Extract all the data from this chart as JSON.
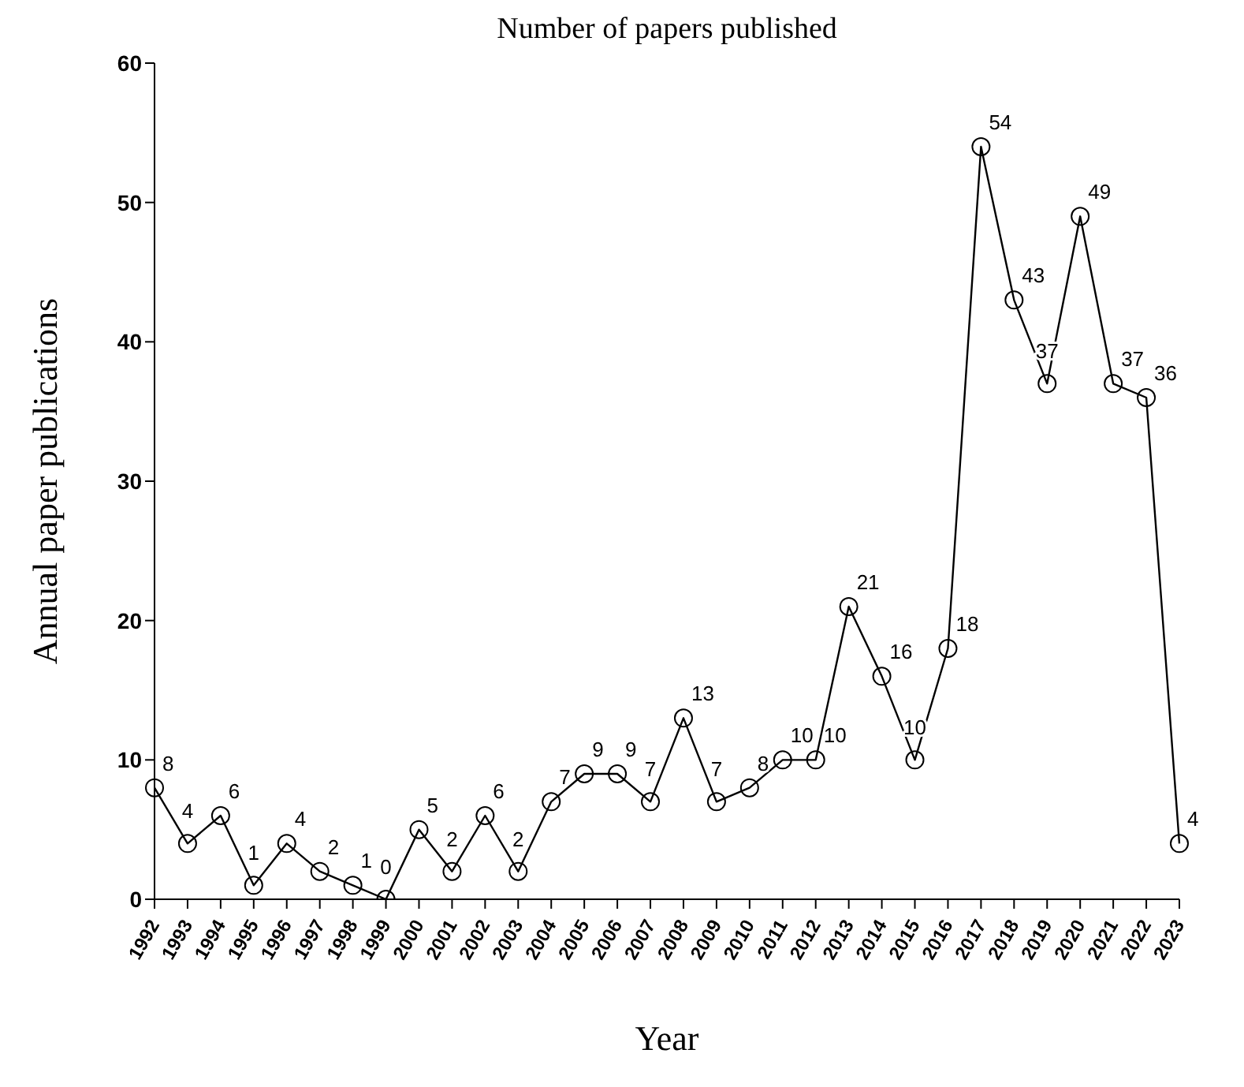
{
  "chart_data": {
    "type": "line",
    "title": "Number of papers published",
    "xlabel": "Year",
    "ylabel": "Annual paper publications",
    "categories": [
      "1992",
      "1993",
      "1994",
      "1995",
      "1996",
      "1997",
      "1998",
      "1999",
      "2000",
      "2001",
      "2002",
      "2003",
      "2004",
      "2005",
      "2006",
      "2007",
      "2008",
      "2009",
      "2010",
      "2011",
      "2012",
      "2013",
      "2014",
      "2015",
      "2016",
      "2017",
      "2018",
      "2019",
      "2020",
      "2021",
      "2022",
      "2023"
    ],
    "series": [
      {
        "color": "#000000",
        "values": [
          8,
          4,
          6,
          1,
          4,
          2,
          1,
          0,
          5,
          2,
          6,
          2,
          7,
          9,
          9,
          7,
          13,
          7,
          8,
          10,
          10,
          21,
          16,
          10,
          18,
          54,
          43,
          37,
          49,
          37,
          36,
          4
        ]
      }
    ],
    "ylim": [
      0,
      60
    ],
    "yticks": [
      0,
      10,
      20,
      30,
      40,
      50,
      60
    ],
    "grid": false,
    "legend": false,
    "marker": "circle",
    "line_style": "solid",
    "data_labels": true
  }
}
